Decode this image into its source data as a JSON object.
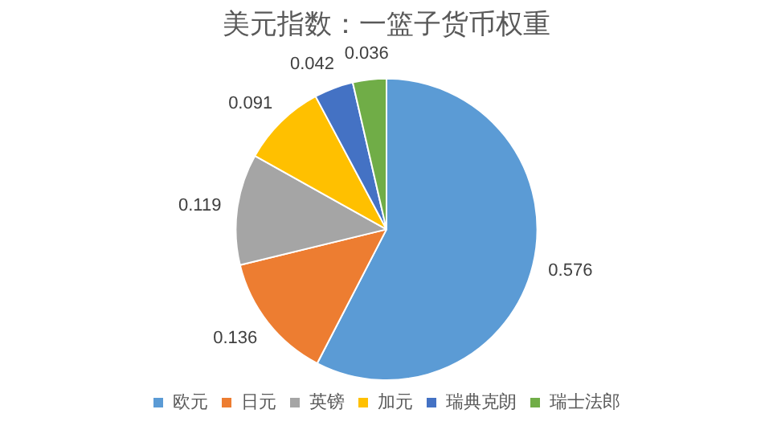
{
  "chart_data": {
    "type": "pie",
    "title": "美元指数：一篮子货币权重",
    "categories": [
      "欧元",
      "日元",
      "英镑",
      "加元",
      "瑞典克朗",
      "瑞士法郎"
    ],
    "values": [
      0.576,
      0.136,
      0.119,
      0.091,
      0.042,
      0.036
    ],
    "colors": [
      "#5b9bd5",
      "#ed7d31",
      "#a5a5a5",
      "#ffc000",
      "#4472c4",
      "#70ad47"
    ],
    "data_labels": true,
    "legend": "bottom"
  }
}
